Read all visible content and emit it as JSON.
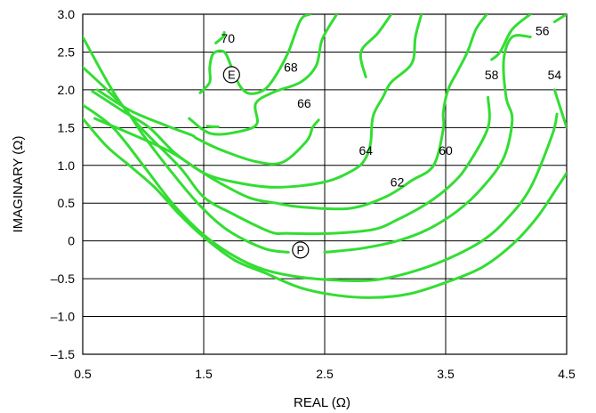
{
  "chart_data": {
    "type": "line",
    "xlabel": "REAL (Ω)",
    "ylabel": "IMAGINARY (Ω)",
    "xlim": [
      0.5,
      4.5
    ],
    "ylim": [
      -1.5,
      3.0
    ],
    "grid": true,
    "x_ticks": [
      {
        "value": 0.5,
        "label": "0.5"
      },
      {
        "value": 1.5,
        "label": "1.5"
      },
      {
        "value": 2.5,
        "label": "2.5"
      },
      {
        "value": 3.5,
        "label": "3.5"
      },
      {
        "value": 4.5,
        "label": "4.5"
      }
    ],
    "y_ticks": [
      {
        "value": 3.0,
        "label": "3.0"
      },
      {
        "value": 2.5,
        "label": "2.5"
      },
      {
        "value": 2.0,
        "label": "2.0"
      },
      {
        "value": 1.5,
        "label": "1.5"
      },
      {
        "value": 1.0,
        "label": "1.0"
      },
      {
        "value": 0.5,
        "label": "0.5"
      },
      {
        "value": 0,
        "label": "0"
      },
      {
        "value": -0.5,
        "label": "–0.5"
      },
      {
        "value": -1.0,
        "label": "–1.0"
      },
      {
        "value": -1.5,
        "label": "–1.5"
      }
    ],
    "line_color": "#33dd33",
    "series": [
      {
        "name": "70",
        "label_at": [
          1.7,
          2.68
        ],
        "points": [
          [
            1.53,
            1.52
          ],
          [
            1.58,
            1.51
          ],
          [
            1.62,
            1.51
          ]
        ]
      },
      {
        "name": "70",
        "points": [
          [
            1.6,
            2.62
          ],
          [
            1.66,
            2.7
          ],
          [
            1.67,
            2.76
          ]
        ]
      },
      {
        "name": "68",
        "label_at": [
          2.22,
          2.3
        ],
        "points": [
          [
            1.47,
            1.96
          ],
          [
            1.55,
            2.1
          ],
          [
            1.55,
            2.3
          ],
          [
            1.58,
            2.48
          ],
          [
            1.67,
            2.5
          ],
          [
            1.73,
            2.3
          ],
          [
            1.8,
            2.05
          ],
          [
            1.88,
            1.95
          ],
          [
            2.0,
            2.0
          ],
          [
            2.1,
            2.2
          ],
          [
            2.2,
            2.5
          ],
          [
            2.3,
            2.92
          ],
          [
            2.38,
            3.0
          ]
        ]
      },
      {
        "name": "66",
        "label_at": [
          2.33,
          1.82
        ],
        "points": [
          [
            1.38,
            1.62
          ],
          [
            1.56,
            1.42
          ],
          [
            1.8,
            1.45
          ],
          [
            1.94,
            1.55
          ],
          [
            1.93,
            1.82
          ],
          [
            2.08,
            1.97
          ],
          [
            2.3,
            2.1
          ],
          [
            2.43,
            2.32
          ],
          [
            2.48,
            2.67
          ],
          [
            2.6,
            3.0
          ]
        ]
      },
      {
        "name": "64",
        "label_at": [
          2.84,
          1.2
        ],
        "points": [
          [
            0.62,
            2.0
          ],
          [
            0.9,
            1.72
          ],
          [
            1.2,
            1.52
          ],
          [
            1.4,
            1.4
          ],
          [
            1.45,
            1.35
          ],
          [
            1.65,
            1.2
          ],
          [
            1.93,
            1.05
          ],
          [
            2.15,
            1.04
          ],
          [
            2.35,
            1.32
          ],
          [
            2.4,
            1.5
          ],
          [
            2.45,
            1.6
          ]
        ]
      },
      {
        "name": "64",
        "points": [
          [
            2.84,
            2.17
          ],
          [
            2.8,
            2.5
          ],
          [
            2.94,
            2.75
          ],
          [
            3.05,
            3.0
          ]
        ]
      },
      {
        "name": "62",
        "label_at": [
          3.1,
          0.78
        ],
        "points": [
          [
            0.6,
            1.62
          ],
          [
            1.2,
            1.2
          ],
          [
            1.5,
            0.9
          ],
          [
            1.75,
            0.78
          ],
          [
            2.1,
            0.71
          ],
          [
            2.5,
            0.78
          ],
          [
            2.75,
            0.95
          ],
          [
            2.84,
            1.1
          ],
          [
            2.88,
            1.3
          ],
          [
            2.9,
            1.65
          ],
          [
            2.98,
            1.9
          ],
          [
            3.05,
            2.1
          ],
          [
            3.22,
            2.35
          ],
          [
            3.25,
            2.7
          ],
          [
            3.3,
            3.0
          ]
        ]
      },
      {
        "name": "60",
        "label_at": [
          3.5,
          1.2
        ],
        "points": [
          [
            0.58,
            1.98
          ],
          [
            0.85,
            1.7
          ],
          [
            1.05,
            1.5
          ],
          [
            1.25,
            1.18
          ],
          [
            1.42,
            0.98
          ],
          [
            1.62,
            0.78
          ],
          [
            1.88,
            0.57
          ],
          [
            2.1,
            0.5
          ],
          [
            2.3,
            0.45
          ],
          [
            2.7,
            0.43
          ],
          [
            3.0,
            0.58
          ],
          [
            3.22,
            0.8
          ],
          [
            3.4,
            1.0
          ],
          [
            3.48,
            1.48
          ],
          [
            3.48,
            1.7
          ],
          [
            3.52,
            2.0
          ],
          [
            3.6,
            2.25
          ],
          [
            3.68,
            2.5
          ],
          [
            3.75,
            2.8
          ],
          [
            3.84,
            3.0
          ]
        ]
      },
      {
        "name": "58",
        "label_at": [
          3.88,
          2.2
        ],
        "points": [
          [
            0.5,
            2.7
          ],
          [
            0.75,
            1.98
          ],
          [
            0.95,
            1.55
          ],
          [
            1.3,
            0.98
          ],
          [
            1.5,
            0.58
          ],
          [
            1.75,
            0.35
          ],
          [
            2.05,
            0.12
          ],
          [
            2.2,
            0.1
          ],
          [
            2.55,
            0.1
          ],
          [
            2.9,
            0.15
          ],
          [
            3.1,
            0.28
          ],
          [
            3.35,
            0.5
          ],
          [
            3.55,
            0.75
          ],
          [
            3.68,
            1.0
          ],
          [
            3.85,
            1.5
          ],
          [
            3.85,
            1.9
          ]
        ]
      },
      {
        "name": "58",
        "points": [
          [
            3.88,
            2.4
          ],
          [
            3.95,
            2.5
          ],
          [
            4.05,
            2.8
          ],
          [
            4.2,
            3.0
          ]
        ]
      },
      {
        "name": "56",
        "label_at": [
          4.3,
          2.78
        ],
        "points": [
          [
            0.5,
            2.3
          ],
          [
            0.7,
            2.0
          ],
          [
            0.85,
            1.75
          ],
          [
            1.0,
            1.4
          ],
          [
            1.2,
            0.98
          ],
          [
            1.45,
            0.5
          ],
          [
            1.7,
            0.14
          ],
          [
            2.0,
            -0.1
          ],
          [
            2.2,
            -0.15
          ]
        ]
      },
      {
        "name": "56",
        "points": [
          [
            2.5,
            -0.15
          ],
          [
            2.8,
            -0.1
          ],
          [
            3.1,
            0.0
          ],
          [
            3.35,
            0.15
          ],
          [
            3.6,
            0.4
          ],
          [
            3.8,
            0.7
          ],
          [
            3.98,
            1.1
          ],
          [
            4.05,
            1.6
          ],
          [
            4.0,
            1.9
          ],
          [
            3.98,
            2.4
          ],
          [
            4.05,
            2.7
          ],
          [
            4.2,
            2.7
          ]
        ]
      },
      {
        "name": "56",
        "points": [
          [
            4.4,
            2.9
          ],
          [
            4.5,
            3.0
          ]
        ]
      },
      {
        "name": "54",
        "label_at": [
          4.4,
          2.2
        ],
        "points": [
          [
            0.5,
            1.8
          ],
          [
            0.75,
            1.5
          ],
          [
            1.0,
            1.0
          ],
          [
            1.25,
            0.48
          ],
          [
            1.5,
            0.08
          ],
          [
            1.75,
            -0.2
          ],
          [
            2.0,
            -0.38
          ],
          [
            2.3,
            -0.48
          ],
          [
            2.6,
            -0.52
          ],
          [
            2.9,
            -0.52
          ],
          [
            3.2,
            -0.42
          ],
          [
            3.5,
            -0.25
          ],
          [
            3.8,
            0.0
          ],
          [
            4.0,
            0.28
          ],
          [
            4.2,
            0.7
          ],
          [
            4.38,
            1.4
          ],
          [
            4.42,
            1.68
          ]
        ]
      },
      {
        "name": "54",
        "points": [
          [
            4.4,
            2.0
          ],
          [
            4.5,
            1.5
          ]
        ]
      },
      {
        "name": "",
        "points": [
          [
            0.5,
            1.62
          ],
          [
            0.7,
            1.25
          ],
          [
            0.9,
            0.98
          ],
          [
            1.1,
            0.7
          ],
          [
            1.3,
            0.35
          ],
          [
            1.5,
            0.05
          ],
          [
            1.75,
            -0.25
          ],
          [
            2.0,
            -0.42
          ],
          [
            2.3,
            -0.62
          ],
          [
            2.6,
            -0.72
          ],
          [
            2.9,
            -0.75
          ],
          [
            3.2,
            -0.7
          ],
          [
            3.5,
            -0.55
          ],
          [
            3.8,
            -0.35
          ],
          [
            4.05,
            -0.05
          ],
          [
            4.25,
            0.3
          ],
          [
            4.42,
            0.7
          ],
          [
            4.5,
            0.9
          ]
        ]
      }
    ],
    "markers": [
      {
        "label": "E",
        "x": 1.73,
        "y": 2.2
      },
      {
        "label": "P",
        "x": 2.3,
        "y": -0.12
      }
    ]
  }
}
